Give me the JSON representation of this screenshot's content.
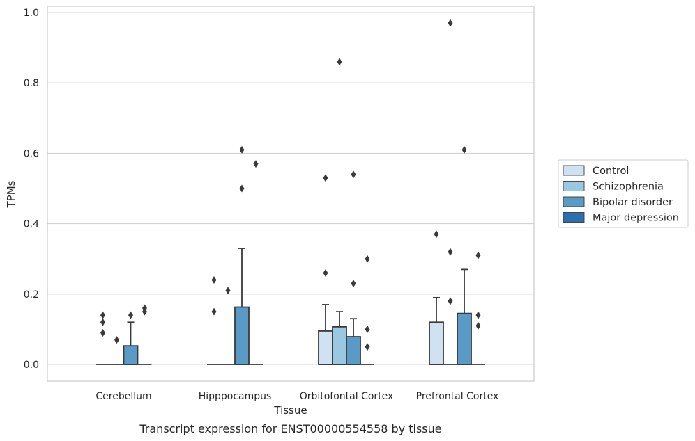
{
  "caption": "Transcript expression for ENST00000554558 by tissue",
  "chart_data": {
    "type": "box",
    "xlabel": "Tissue",
    "ylabel": "TPMs",
    "ylim": [
      -0.045,
      1.02
    ],
    "yticks": [
      "0.0",
      "0.2",
      "0.4",
      "0.6",
      "0.8",
      "1.0"
    ],
    "ytick_values": [
      0.0,
      0.2,
      0.4,
      0.6,
      0.8,
      1.0
    ],
    "grid": true,
    "legend_position": "right",
    "categories": [
      "Cerebellum",
      "Hipppocampus",
      "Orbitofontal Cortex",
      "Prefrontal Cortex"
    ],
    "series": [
      {
        "name": "Control",
        "color": "#d0e1f2",
        "boxes": [
          {
            "q1": 0,
            "q3": 0,
            "median": 0,
            "whisker_low": 0,
            "whisker_high": 0,
            "outliers": [
              0.14,
              0.12,
              0.09
            ]
          },
          {
            "q1": 0,
            "q3": 0,
            "median": 0,
            "whisker_low": 0,
            "whisker_high": 0,
            "outliers": [
              0.24,
              0.15
            ]
          },
          {
            "q1": 0,
            "q3": 0.095,
            "median": 0,
            "whisker_low": 0,
            "whisker_high": 0.17,
            "outliers": [
              0.53,
              0.26
            ]
          },
          {
            "q1": 0,
            "q3": 0.12,
            "median": 0,
            "whisker_low": 0,
            "whisker_high": 0.19,
            "outliers": [
              0.37
            ]
          }
        ]
      },
      {
        "name": "Schizophrenia",
        "color": "#9ac8e0",
        "boxes": [
          {
            "q1": 0,
            "q3": 0,
            "median": 0,
            "whisker_low": 0,
            "whisker_high": 0,
            "outliers": [
              0.07
            ]
          },
          {
            "q1": 0,
            "q3": 0,
            "median": 0,
            "whisker_low": 0,
            "whisker_high": 0,
            "outliers": [
              0.21
            ]
          },
          {
            "q1": 0,
            "q3": 0.107,
            "median": 0,
            "whisker_low": 0,
            "whisker_high": 0.15,
            "outliers": [
              0.86
            ]
          },
          {
            "q1": 0,
            "q3": 0,
            "median": 0,
            "whisker_low": 0,
            "whisker_high": 0,
            "outliers": [
              0.97,
              0.32,
              0.18
            ]
          }
        ]
      },
      {
        "name": "Bipolar disorder",
        "color": "#5a9ac6",
        "boxes": [
          {
            "q1": 0,
            "q3": 0.053,
            "median": 0,
            "whisker_low": 0,
            "whisker_high": 0.12,
            "outliers": [
              0.14
            ]
          },
          {
            "q1": 0,
            "q3": 0.163,
            "median": 0,
            "whisker_low": 0,
            "whisker_high": 0.33,
            "outliers": [
              0.61,
              0.5
            ]
          },
          {
            "q1": 0,
            "q3": 0.079,
            "median": 0,
            "whisker_low": 0,
            "whisker_high": 0.13,
            "outliers": [
              0.54,
              0.23
            ]
          },
          {
            "q1": 0,
            "q3": 0.145,
            "median": 0,
            "whisker_low": 0,
            "whisker_high": 0.27,
            "outliers": [
              0.61
            ]
          }
        ]
      },
      {
        "name": "Major depression",
        "color": "#2b6fac",
        "boxes": [
          {
            "q1": 0,
            "q3": 0,
            "median": 0,
            "whisker_low": 0,
            "whisker_high": 0,
            "outliers": [
              0.16,
              0.15
            ]
          },
          {
            "q1": 0,
            "q3": 0,
            "median": 0,
            "whisker_low": 0,
            "whisker_high": 0,
            "outliers": [
              0.57
            ]
          },
          {
            "q1": 0,
            "q3": 0,
            "median": 0,
            "whisker_low": 0,
            "whisker_high": 0,
            "outliers": [
              0.3,
              0.1,
              0.05
            ]
          },
          {
            "q1": 0,
            "q3": 0,
            "median": 0,
            "whisker_low": 0,
            "whisker_high": 0,
            "outliers": [
              0.31,
              0.14,
              0.11
            ]
          }
        ]
      }
    ]
  }
}
